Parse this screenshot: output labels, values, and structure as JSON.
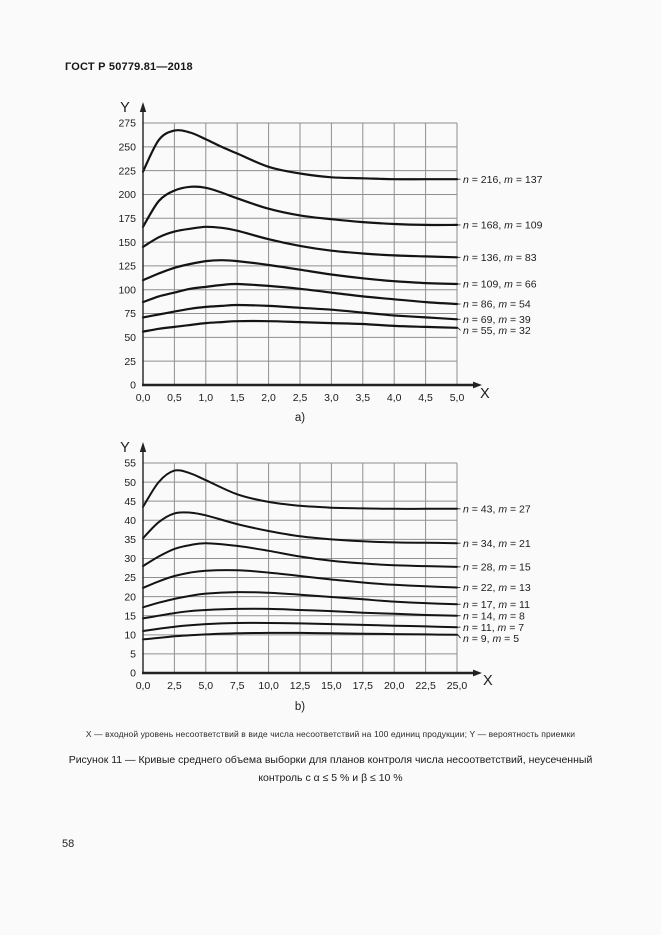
{
  "page": {
    "header": "ГОСТ Р 50779.81—2018",
    "page_number": "58",
    "axis_note": "X — входной уровень несоответствий в виде числа несоответствий на 100 единиц продукции; Y — вероятность приемки",
    "caption_line1": "Рисунок 11 — Кривые среднего объема выборки для планов контроля числа несоответствий, неусеченный",
    "caption_line2": "контроль с α ≤ 5 % и β ≤ 10 %"
  },
  "colors": {
    "ink": "#1c1c1c",
    "curve": "#141414",
    "grid": "#8f8f8f",
    "paper": "#fafafa"
  },
  "chart_data": [
    {
      "id": "a",
      "type": "line",
      "sublabel": "a)",
      "xlabel": "X",
      "ylabel": "Y",
      "xlim": [
        0,
        5
      ],
      "ylim": [
        0,
        275
      ],
      "grid": true,
      "legend_position": "right-of-plot",
      "xtick_values": [
        0,
        0.5,
        1,
        1.5,
        2,
        2.5,
        3,
        3.5,
        4,
        4.5,
        5
      ],
      "xtick_labels": [
        "0,0",
        "0,5",
        "1,0",
        "1,5",
        "2,0",
        "2,5",
        "3,0",
        "3,5",
        "4,0",
        "4,5",
        "5,0"
      ],
      "ytick_values": [
        0,
        25,
        50,
        75,
        100,
        125,
        150,
        175,
        200,
        225,
        250,
        275
      ],
      "x": [
        0,
        0.25,
        0.5,
        0.75,
        1,
        1.25,
        1.5,
        2,
        2.5,
        3,
        3.5,
        4,
        4.5,
        5
      ],
      "series": [
        {
          "label": "n = 216, m = 137",
          "n": 216,
          "m": 137,
          "values": [
            224,
            257,
            267,
            265,
            258,
            250,
            243,
            229,
            222,
            218,
            217,
            216,
            216,
            216
          ]
        },
        {
          "label": "n = 168, m = 109",
          "n": 168,
          "m": 109,
          "values": [
            166,
            193,
            204,
            208,
            207,
            202,
            196,
            185,
            178,
            174,
            171,
            169,
            168,
            168
          ]
        },
        {
          "label": "n = 136, m = 83",
          "n": 136,
          "m": 83,
          "values": [
            145,
            155,
            161,
            164,
            166,
            165,
            162,
            153,
            146,
            141,
            138,
            136,
            135,
            134
          ]
        },
        {
          "label": "n = 109, m = 66",
          "n": 109,
          "m": 66,
          "values": [
            110,
            117,
            123,
            127,
            130,
            131,
            130,
            126,
            121,
            116,
            112,
            109,
            107,
            106
          ]
        },
        {
          "label": "n = 86, m = 54",
          "n": 86,
          "m": 54,
          "values": [
            87,
            93,
            97,
            101,
            103,
            105,
            106,
            104,
            101,
            97,
            93,
            90,
            87,
            85
          ]
        },
        {
          "label": "n = 69, m = 39",
          "n": 69,
          "m": 39,
          "values": [
            71,
            74,
            77,
            80,
            82,
            83,
            84,
            83,
            81,
            79,
            76,
            73,
            71,
            69
          ]
        },
        {
          "label": "n = 55, m = 32",
          "n": 55,
          "m": 32,
          "values": [
            56,
            59,
            61,
            63,
            65,
            66,
            67,
            67,
            66,
            65,
            64,
            62,
            61,
            60
          ]
        }
      ]
    },
    {
      "id": "b",
      "type": "line",
      "sublabel": "b)",
      "xlabel": "X",
      "ylabel": "Y",
      "xlim": [
        0,
        25
      ],
      "ylim": [
        0,
        55
      ],
      "grid": true,
      "legend_position": "right-of-plot",
      "xtick_values": [
        0,
        2.5,
        5,
        7.5,
        10,
        12.5,
        15,
        17.5,
        20,
        22.5,
        25
      ],
      "xtick_labels": [
        "0,0",
        "2,5",
        "5,0",
        "7,5",
        "10,0",
        "12,5",
        "15,0",
        "17,5",
        "20,0",
        "22,5",
        "25,0"
      ],
      "ytick_values": [
        0,
        5,
        10,
        15,
        20,
        25,
        30,
        35,
        40,
        45,
        50,
        55
      ],
      "x": [
        0,
        1.25,
        2.5,
        3.75,
        5,
        7.5,
        10,
        12.5,
        15,
        17.5,
        20,
        22.5,
        25
      ],
      "series": [
        {
          "label": "n = 43, m = 27",
          "n": 43,
          "m": 27,
          "values": [
            43.5,
            50,
            53,
            52.3,
            50.5,
            46.8,
            44.8,
            43.8,
            43.3,
            43.1,
            43,
            43,
            43
          ]
        },
        {
          "label": "n = 34, m = 21",
          "n": 34,
          "m": 21,
          "values": [
            35.3,
            39.5,
            41.8,
            42,
            41.3,
            39,
            37.2,
            35.8,
            35,
            34.5,
            34.2,
            34.1,
            34
          ]
        },
        {
          "label": "n = 28, m = 15",
          "n": 28,
          "m": 15,
          "values": [
            28,
            30.5,
            32.5,
            33.5,
            34,
            33.3,
            32,
            30.5,
            29.4,
            28.7,
            28.2,
            28,
            27.8
          ]
        },
        {
          "label": "n = 22, m = 13",
          "n": 22,
          "m": 13,
          "values": [
            22.3,
            24,
            25.4,
            26.3,
            26.8,
            26.9,
            26.3,
            25.4,
            24.5,
            23.7,
            23.1,
            22.7,
            22.4
          ]
        },
        {
          "label": "n = 17, m = 11",
          "n": 17,
          "m": 11,
          "values": [
            17.2,
            18.4,
            19.4,
            20.2,
            20.8,
            21.2,
            21,
            20.5,
            19.9,
            19.3,
            18.7,
            18.3,
            18
          ]
        },
        {
          "label": "n = 14, m = 8",
          "n": 14,
          "m": 8,
          "values": [
            14.3,
            15,
            15.7,
            16.2,
            16.5,
            16.8,
            16.8,
            16.5,
            16.2,
            15.8,
            15.5,
            15.2,
            15
          ]
        },
        {
          "label": "n = 11, m = 7",
          "n": 11,
          "m": 7,
          "values": [
            11,
            11.6,
            12.1,
            12.5,
            12.8,
            13.1,
            13.1,
            13,
            12.8,
            12.6,
            12.4,
            12.2,
            12
          ]
        },
        {
          "label": "n = 9, m = 5",
          "n": 9,
          "m": 5,
          "values": [
            8.8,
            9.2,
            9.6,
            9.9,
            10.1,
            10.4,
            10.5,
            10.5,
            10.4,
            10.3,
            10.2,
            10.1,
            10
          ]
        }
      ]
    }
  ]
}
